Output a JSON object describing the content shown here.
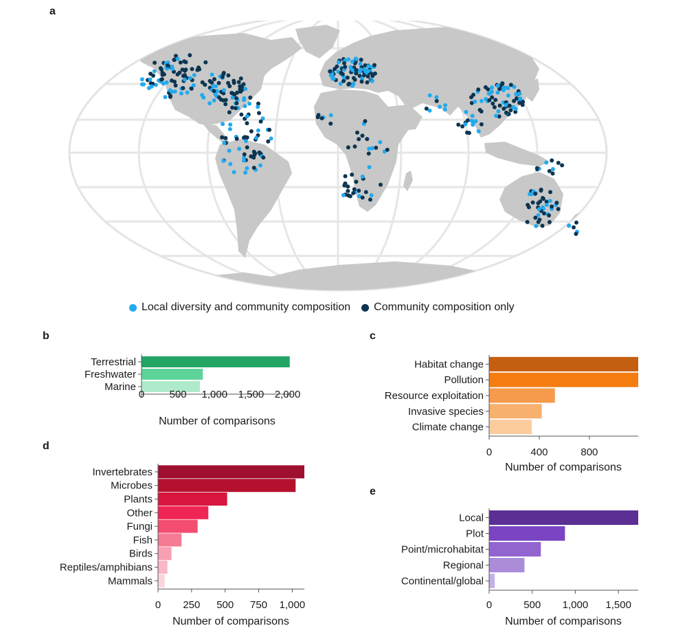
{
  "panels": {
    "a": "a",
    "b": "b",
    "c": "c",
    "d": "d",
    "e": "e"
  },
  "map_legend": {
    "items": [
      {
        "label": "Local diversity and community composition",
        "color": "#22aaee"
      },
      {
        "label": "Community composition only",
        "color": "#0d3550"
      }
    ]
  },
  "chart_data": [
    {
      "id": "b",
      "type": "bar",
      "orientation": "horizontal",
      "categories": [
        "Terrestrial",
        "Freshwater",
        "Marine"
      ],
      "values": [
        2030,
        840,
        800
      ],
      "colors": [
        "#22a565",
        "#5dd59a",
        "#aeeacb"
      ],
      "xlabel": "Number of comparisons",
      "xlim": [
        0,
        2070
      ],
      "xticks": [
        0,
        500,
        1000,
        1500,
        2000
      ],
      "xtick_labels": [
        "0",
        "500",
        "1,000",
        "1,500",
        "2,000"
      ]
    },
    {
      "id": "c",
      "type": "bar",
      "orientation": "horizontal",
      "categories": [
        "Habitat change",
        "Pollution",
        "Resource exploitation",
        "Invasive species",
        "Climate change"
      ],
      "values": [
        1190,
        1190,
        525,
        420,
        340
      ],
      "colors": [
        "#c45f12",
        "#f57c10",
        "#f69a4b",
        "#f8b06e",
        "#fbcc9e"
      ],
      "xlabel": "Number of comparisons",
      "xlim": [
        0,
        1190
      ],
      "xticks": [
        0,
        400,
        800
      ],
      "xtick_labels": [
        "0",
        "400",
        "800"
      ]
    },
    {
      "id": "d",
      "type": "bar",
      "orientation": "horizontal",
      "categories": [
        "Invertebrates",
        "Microbes",
        "Plants",
        "Other",
        "Fungi",
        "Fish",
        "Birds",
        "Reptiles/amphibians",
        "Mammals"
      ],
      "values": [
        1090,
        1025,
        515,
        375,
        295,
        175,
        100,
        70,
        50
      ],
      "colors": [
        "#9e0f30",
        "#b5112f",
        "#d8163e",
        "#ef2555",
        "#f34d71",
        "#f57a93",
        "#f89fb1",
        "#f9b8c6",
        "#fbd5dd"
      ],
      "xlabel": "Number of comparisons",
      "xlim": [
        0,
        1090
      ],
      "xticks": [
        0,
        250,
        500,
        750,
        1000
      ],
      "xtick_labels": [
        "0",
        "250",
        "500",
        "750",
        "1,000"
      ]
    },
    {
      "id": "e",
      "type": "bar",
      "orientation": "horizontal",
      "categories": [
        "Local",
        "Plot",
        "Point/microhabitat",
        "Regional",
        "Continental/global"
      ],
      "values": [
        1730,
        880,
        600,
        410,
        65
      ],
      "colors": [
        "#5b2f94",
        "#7a44c2",
        "#9264d0",
        "#aa8cd9",
        "#c4b1e6"
      ],
      "xlabel": "Number of comparisons",
      "xlim": [
        0,
        1730
      ],
      "xticks": [
        0,
        500,
        1000,
        1500
      ],
      "xtick_labels": [
        "0",
        "500",
        "1,000",
        "1,500"
      ]
    }
  ]
}
